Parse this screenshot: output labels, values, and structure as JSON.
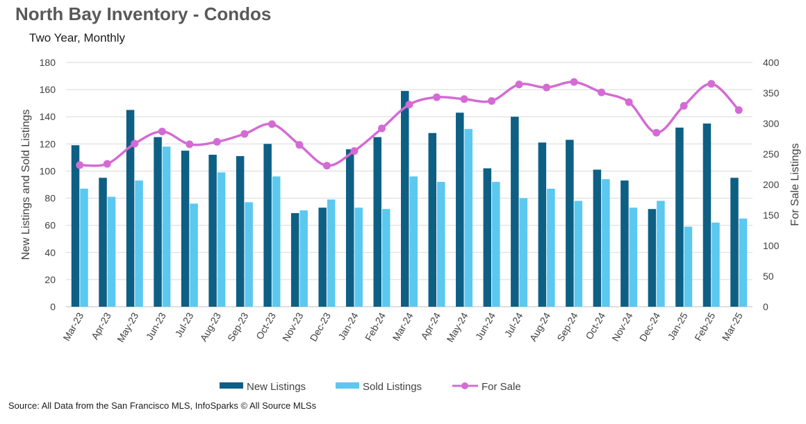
{
  "chart_data": {
    "type": "bar",
    "title": "North Bay Inventory - Condos",
    "subtitle": "Two Year, Monthly",
    "ylabel": "New Listings and Sold Listings",
    "y2label": "For Sale Listings",
    "ylim": [
      0,
      180
    ],
    "y2lim": [
      0,
      400
    ],
    "yticks": [
      "0",
      "20",
      "40",
      "60",
      "80",
      "100",
      "120",
      "140",
      "160",
      "180"
    ],
    "y2ticks": [
      "0",
      "50",
      "100",
      "150",
      "200",
      "250",
      "300",
      "350",
      "400"
    ],
    "grid": true,
    "legend_position": "bottom",
    "categories": [
      "Mar-23",
      "Apr-23",
      "May-23",
      "Jun-23",
      "Jul-23",
      "Aug-23",
      "Sep-23",
      "Oct-23",
      "Nov-23",
      "Dec-23",
      "Jan-24",
      "Feb-24",
      "Mar-24",
      "Apr-24",
      "May-24",
      "Jun-24",
      "Jul-24",
      "Aug-24",
      "Sep-24",
      "Oct-24",
      "Nov-24",
      "Dec-24",
      "Jan-25",
      "Feb-25",
      "Mar-25"
    ],
    "series": [
      {
        "name": "New Listings",
        "type": "bar",
        "axis": "left",
        "color": "#0e5f84",
        "values": [
          119,
          95,
          145,
          125,
          115,
          112,
          111,
          120,
          69,
          73,
          116,
          125,
          159,
          128,
          143,
          102,
          140,
          121,
          123,
          101,
          93,
          72,
          132,
          135,
          95
        ]
      },
      {
        "name": "Sold Listings",
        "type": "bar",
        "axis": "left",
        "color": "#5bc8f0",
        "values": [
          87,
          81,
          93,
          118,
          76,
          99,
          77,
          96,
          71,
          79,
          73,
          72,
          96,
          92,
          131,
          92,
          80,
          87,
          78,
          94,
          73,
          78,
          59,
          62,
          65
        ]
      },
      {
        "name": "For Sale",
        "type": "line",
        "axis": "right",
        "color": "#d46bd4",
        "values": [
          232,
          234,
          267,
          287,
          266,
          270,
          283,
          299,
          265,
          231,
          255,
          292,
          331,
          343,
          340,
          337,
          364,
          359,
          368,
          351,
          335,
          285,
          329,
          365,
          322
        ]
      }
    ]
  },
  "source": "Source: All Data from the San Francisco MLS, InfoSparks © All Source MLSs"
}
